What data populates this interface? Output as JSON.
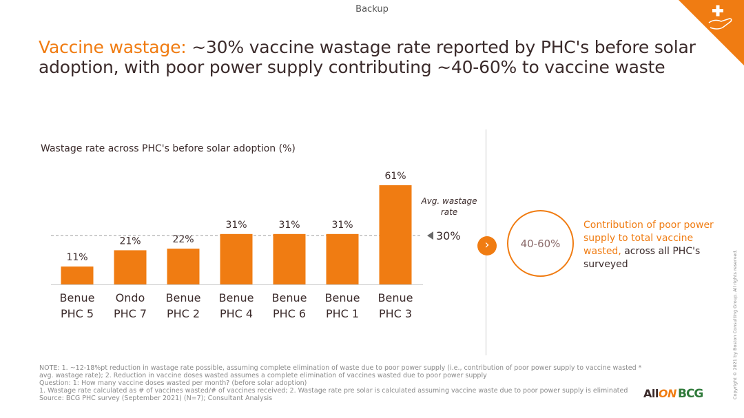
{
  "header": {
    "backup_label": "Backup"
  },
  "title": {
    "accent": "Vaccine wastage:",
    "rest": " ~30% vaccine wastage rate reported by PHC's before solar adoption, with poor power supply contributing ~40-60% to vaccine waste"
  },
  "chart_data": {
    "type": "bar",
    "title": "Wastage rate across PHC's before solar adoption (%)",
    "categories": [
      [
        "Benue",
        "PHC 5"
      ],
      [
        "Ondo",
        "PHC 7"
      ],
      [
        "Benue",
        "PHC 2"
      ],
      [
        "Benue",
        "PHC 4"
      ],
      [
        "Benue",
        "PHC 6"
      ],
      [
        "Benue",
        "PHC 1"
      ],
      [
        "Benue",
        "PHC 3"
      ]
    ],
    "values": [
      11,
      21,
      22,
      31,
      31,
      31,
      61
    ],
    "value_labels": [
      "11%",
      "21%",
      "22%",
      "31%",
      "31%",
      "31%",
      "61%"
    ],
    "ylim": [
      0,
      61
    ],
    "bar_color": "#f07c12",
    "reference_line": {
      "value": 30,
      "label": "30%",
      "annotation": [
        "Avg. wastage",
        "rate"
      ]
    }
  },
  "callout": {
    "arrow_glyph": "›",
    "circle_value": "40-60%",
    "text_orange": "Contribution of poor power supply to total vaccine wasted,",
    "text_dark": " across all PHC's surveyed"
  },
  "notes": [
    "NOTE: 1. ~12-18%pt reduction in wastage rate possible, assuming complete elimination of waste due to poor power supply (i.e., contribution of poor power supply to vaccine wasted *",
    "avg. wastage rate); 2. Reduction in vaccine doses wasted assumes a complete elimination of vaccines wasted due to poor power supply",
    "Question: 1: How many vaccine doses wasted per month? (before solar adoption)",
    "1. Wastage rate calculated as # of vaccines wasted/# of vaccines received; 2. Wastage rate pre solar is calculated assuming vaccine waste due to poor power supply is eliminated",
    "Source: BCG PHC survey (September 2021) (N=7); Consultant Analysis"
  ],
  "footer": {
    "copyright": "Copyright © 2021 by Boston Consulting Group. All rights reserved.",
    "logo_allon_a": "All",
    "logo_allon_b": "ON",
    "logo_bcg": "BCG"
  },
  "colors": {
    "accent": "#f07c12",
    "text": "#3b2b2b"
  }
}
